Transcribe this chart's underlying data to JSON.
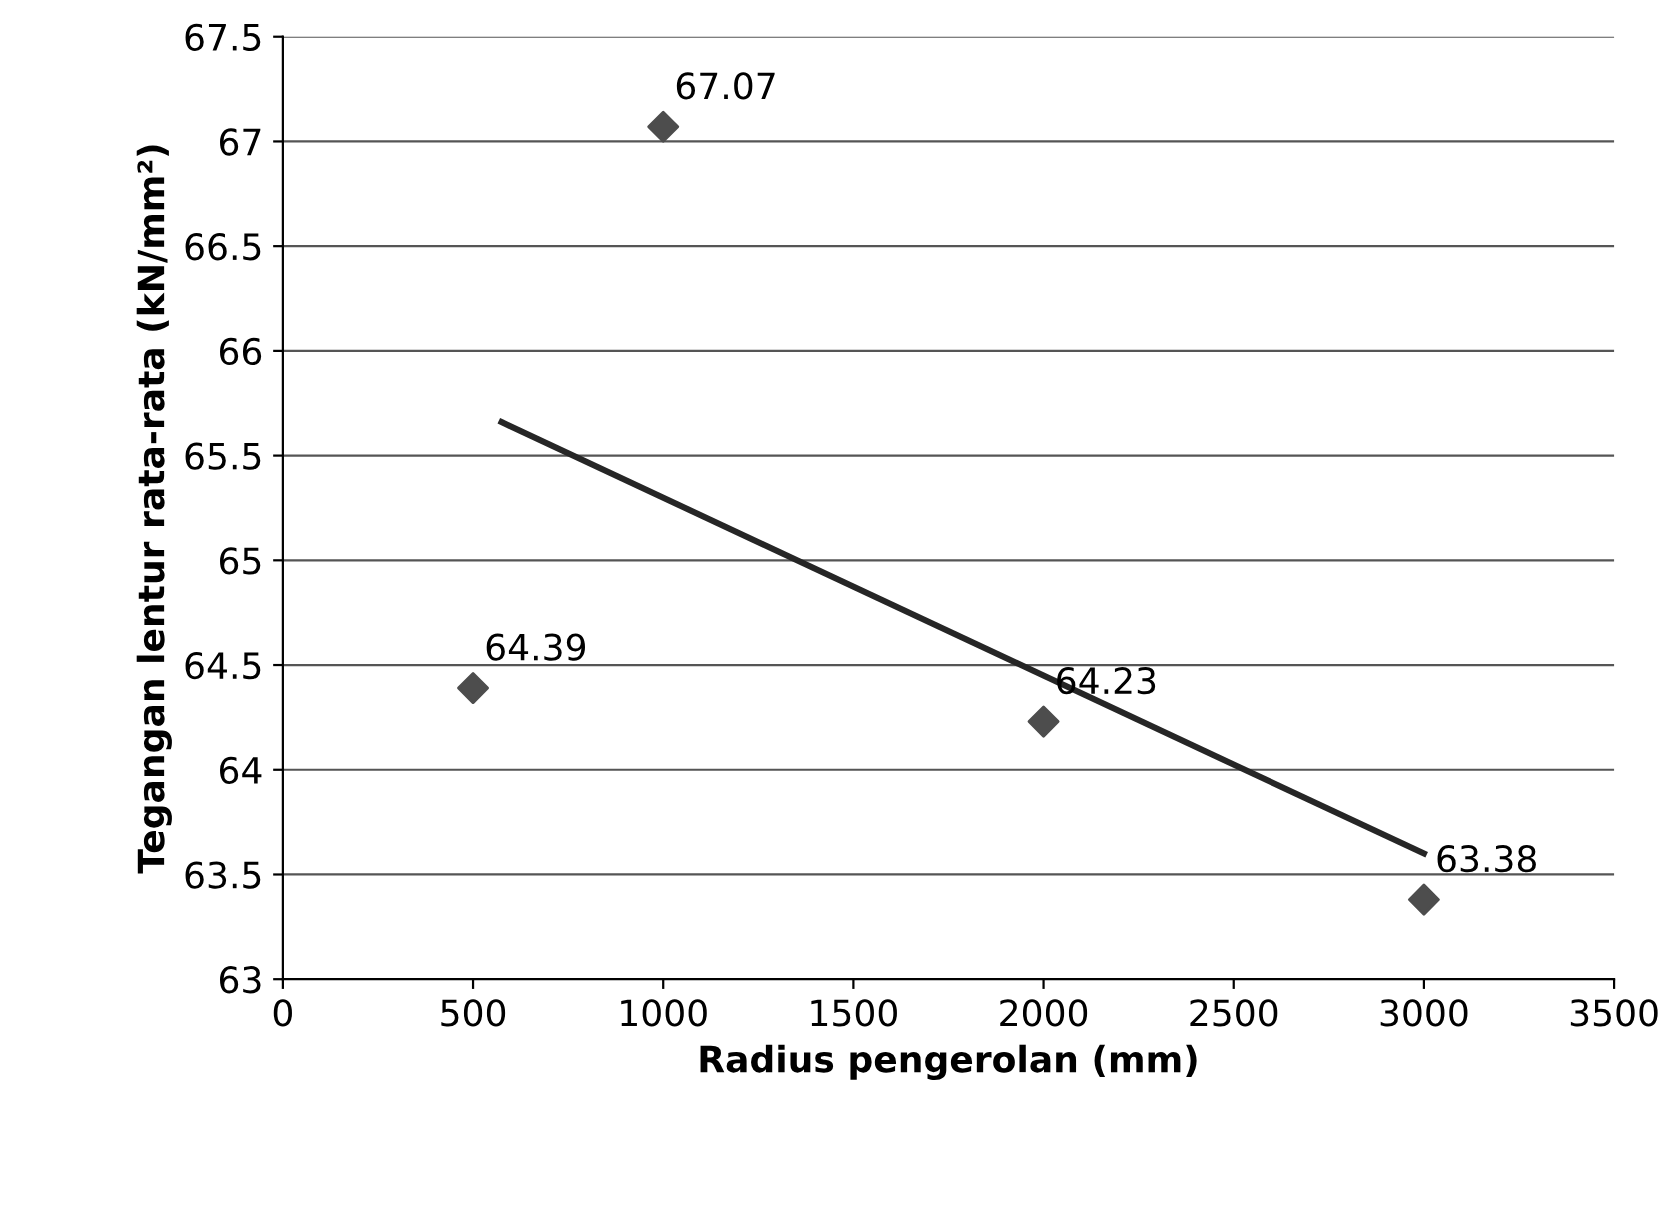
{
  "chart_data": {
    "type": "scatter",
    "xlabel": "Radius pengerolan (mm)",
    "ylabel": "Tegangan lentur rata-rata (kN/mm²)",
    "x": [
      500,
      1000,
      2000,
      3000
    ],
    "series": [
      {
        "color": "#4d4d4d",
        "values": [
          64.39,
          67.07,
          64.23,
          63.38
        ],
        "marker": "diamond",
        "data_labels": true
      },
      {
        "type": "line",
        "color": "#262626",
        "x": [
          575,
          3000
        ],
        "values": [
          65.66,
          63.6
        ],
        "marker": "none",
        "line_style": "solid"
      }
    ],
    "xlim": [
      0,
      3500
    ],
    "xticks": [
      0,
      500,
      1000,
      1500,
      2000,
      2500,
      3000,
      3500
    ],
    "ylim": [
      63,
      67.5
    ],
    "yticks": [
      63,
      63.5,
      64,
      64.5,
      65,
      65.5,
      66,
      66.5,
      67,
      67.5
    ],
    "grid": "y",
    "legend": false
  }
}
